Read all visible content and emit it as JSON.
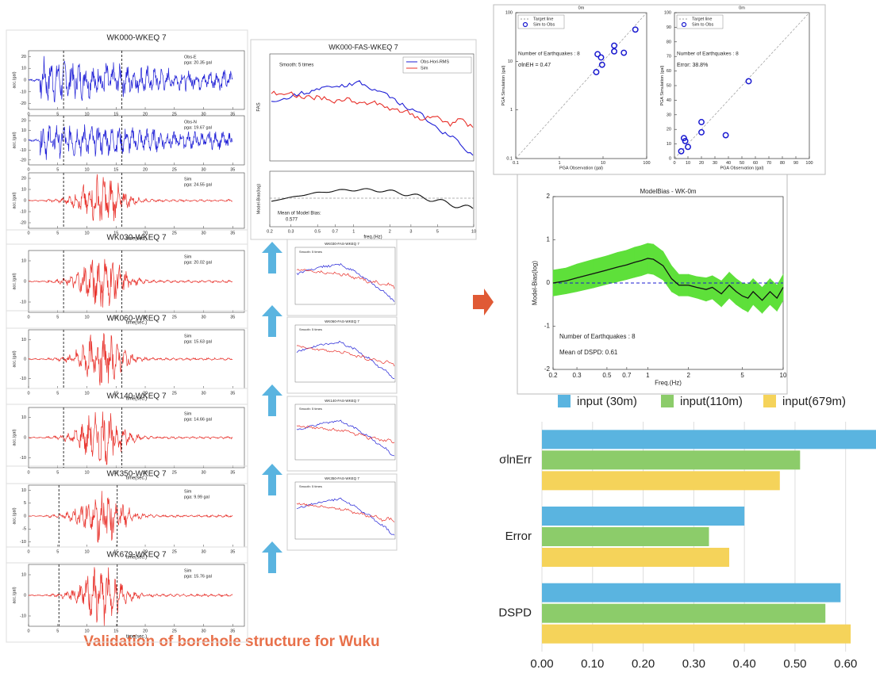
{
  "caption": "Validation of borehole structure for Wuku",
  "waveform_panels": {
    "xlim": [
      0,
      37
    ],
    "xticks": [
      0,
      5,
      10,
      15,
      20,
      25,
      30,
      35
    ],
    "xlabel": "time(sec.)",
    "ylabel": "acc.(gal)",
    "panels": [
      {
        "title": "WK000-WKEQ 7",
        "traces": [
          {
            "label": "Obs-E",
            "pga": "pga: 20.35 gal",
            "color": "#1f1fd6",
            "ylim": [
              -25,
              25
            ],
            "yticks": [
              -20,
              -10,
              0,
              10,
              20
            ]
          },
          {
            "label": "Obs-N",
            "pga": "pga: 19.67 gal",
            "color": "#1f1fd6",
            "ylim": [
              -25,
              25
            ],
            "yticks": [
              -20,
              -10,
              0,
              10,
              20
            ]
          },
          {
            "label": "Sim",
            "pga": "pga: 24.55 gal",
            "color": "#e8302a",
            "ylim": [
              -25,
              25
            ],
            "yticks": [
              -20,
              -10,
              0,
              10,
              20
            ]
          }
        ]
      },
      {
        "title": "WK030-WKEQ 7",
        "traces": [
          {
            "label": "Sim",
            "pga": "pga: 20.02 gal",
            "color": "#e8302a",
            "ylim": [
              -15,
              15
            ],
            "yticks": [
              -10,
              0,
              10
            ]
          }
        ]
      },
      {
        "title": "WK060-WKEQ 7",
        "traces": [
          {
            "label": "Sim",
            "pga": "pga: 15.63 gal",
            "color": "#e8302a",
            "ylim": [
              -15,
              15
            ],
            "yticks": [
              -10,
              0,
              10
            ]
          }
        ]
      },
      {
        "title": "WK140-WKEQ 7",
        "traces": [
          {
            "label": "Sim",
            "pga": "pga: 14.66 gal",
            "color": "#e8302a",
            "ylim": [
              -15,
              15
            ],
            "yticks": [
              -10,
              0,
              10
            ]
          }
        ]
      },
      {
        "title": "WK350-WKEQ 7",
        "traces": [
          {
            "label": "Sim",
            "pga": "pga: 9.99 gal",
            "color": "#e8302a",
            "ylim": [
              -12,
              12
            ],
            "yticks": [
              -10,
              -5,
              0,
              5,
              10
            ]
          }
        ]
      },
      {
        "title": "WK679-WKEQ 7",
        "traces": [
          {
            "label": "Sim",
            "pga": "pga: 15.76 gal",
            "color": "#e8302a",
            "ylim": [
              -15,
              15
            ],
            "yticks": [
              -10,
              0,
              10
            ]
          }
        ]
      }
    ]
  },
  "fas": {
    "title": "WK000-FAS-WKEQ 7",
    "smooth": "Smooth: 5 times",
    "legend": [
      "Obs-Hori-RMS",
      "Sim"
    ],
    "ylabel": "FAS",
    "bias_ylabel": "Model-Bias(log)",
    "bias_note": "Mean of Model Bias:",
    "bias_value": "0.577",
    "xlabel": "freq.(Hz)",
    "xlim": [
      0.2,
      10
    ],
    "xticks": [
      0.2,
      0.3,
      0.5,
      0.7,
      1,
      2,
      3,
      5,
      10
    ],
    "small_titles": [
      "WK030-FAS-WKEQ 7",
      "WK060-FAS-WKEQ 7",
      "WK140-FAS-WKEQ 7",
      "WK350-FAS-WKEQ 7"
    ]
  },
  "chart_data": [
    {
      "type": "scatter",
      "title": "0m",
      "log_scale": true,
      "xlim": [
        0.1,
        100
      ],
      "ylim": [
        0.1,
        100
      ],
      "xticks": [
        0.1,
        1,
        10,
        100
      ],
      "yticks": [
        0.1,
        1,
        10,
        100
      ],
      "xlabel": "PGA Observation (gal)",
      "ylabel": "PGA Simulation (gal)",
      "legend": [
        "Target line",
        "Sim to Obs"
      ],
      "notes": [
        "Number of Earthquakes : 8",
        "σlnEH = 0.47"
      ],
      "color": "#1a1ad0",
      "x": [
        7,
        7.5,
        9,
        9.5,
        18,
        18,
        30,
        55
      ],
      "values": [
        6,
        14,
        12,
        8.5,
        16,
        21,
        15,
        45
      ]
    },
    {
      "type": "scatter",
      "title": "0m",
      "log_scale": false,
      "xlim": [
        0,
        100
      ],
      "ylim": [
        0,
        100
      ],
      "xticks": [
        0,
        10,
        20,
        30,
        40,
        50,
        60,
        70,
        80,
        90,
        100
      ],
      "yticks": [
        0,
        10,
        20,
        30,
        40,
        50,
        60,
        70,
        80,
        90,
        100
      ],
      "xlabel": "PGA Observation (gal)",
      "ylabel": "PGA Simulation (gal)",
      "legend": [
        "Target line",
        "Sim to Obs"
      ],
      "notes": [
        "Number of Earthquakes : 8",
        "Error: 38.8%"
      ],
      "color": "#1a1ad0",
      "x": [
        5,
        7,
        8,
        10,
        20,
        20,
        38,
        55
      ],
      "values": [
        5,
        14,
        12,
        8,
        18,
        25,
        16,
        53
      ]
    },
    {
      "type": "band",
      "title": "ModelBias - WK-0m",
      "xlabel": "Freq.(Hz)",
      "ylabel": "Model-Bias(log)",
      "log_scale": true,
      "xlim": [
        0.2,
        10
      ],
      "ylim": [
        -2,
        2
      ],
      "xticks": [
        0.2,
        0.3,
        0.5,
        0.7,
        1,
        2,
        5,
        10
      ],
      "yticks": [
        -2,
        -1,
        0,
        1,
        2
      ],
      "notes": [
        "Number of Earthquakes : 8",
        "Mean of DSPD: 0.61"
      ],
      "color": "#111111",
      "band_color": "#5ee03a",
      "x": [
        0.2,
        0.25,
        0.3,
        0.4,
        0.5,
        0.6,
        0.7,
        0.8,
        0.9,
        1,
        1.1,
        1.3,
        1.5,
        1.7,
        2,
        2.3,
        2.7,
        3,
        3.5,
        4,
        4.5,
        5,
        5.5,
        6,
        7,
        8,
        9,
        10
      ],
      "values": [
        0,
        0.05,
        0.12,
        0.22,
        0.3,
        0.37,
        0.42,
        0.48,
        0.52,
        0.57,
        0.55,
        0.4,
        0.1,
        -0.05,
        -0.05,
        -0.1,
        -0.15,
        -0.1,
        -0.25,
        -0.05,
        -0.2,
        -0.3,
        -0.35,
        -0.2,
        -0.4,
        -0.2,
        -0.35,
        -0.1
      ],
      "errors": [
        0.3,
        0.3,
        0.32,
        0.33,
        0.33,
        0.34,
        0.34,
        0.35,
        0.35,
        0.35,
        0.35,
        0.33,
        0.3,
        0.25,
        0.25,
        0.25,
        0.27,
        0.27,
        0.3,
        0.3,
        0.3,
        0.3,
        0.32,
        0.3,
        0.3,
        0.3,
        0.3,
        0.3
      ]
    },
    {
      "type": "hbar",
      "categories": [
        "σlnErr",
        "Error",
        "DSPD"
      ],
      "xlim": [
        0,
        0.66
      ],
      "xticks": [
        {
          "value": 0,
          "label": "0.00"
        },
        {
          "value": 0.1,
          "label": "0.10"
        },
        {
          "value": 0.2,
          "label": "0.20"
        },
        {
          "value": 0.3,
          "label": "0.30"
        },
        {
          "value": 0.4,
          "label": "0.40"
        },
        {
          "value": 0.5,
          "label": "0.50"
        },
        {
          "value": 0.6,
          "label": "0.60"
        }
      ],
      "grid": true,
      "legend": "top",
      "series": [
        {
          "name": "input (30m)",
          "color": "#5ab4e0",
          "values": [
            0.66,
            0.4,
            0.59
          ]
        },
        {
          "name": "input(110m)",
          "color": "#8ccc6a",
          "values": [
            0.51,
            0.33,
            0.56
          ]
        },
        {
          "name": "input(679m)",
          "color": "#f5d35a",
          "values": [
            0.47,
            0.37,
            0.61
          ]
        }
      ]
    }
  ]
}
